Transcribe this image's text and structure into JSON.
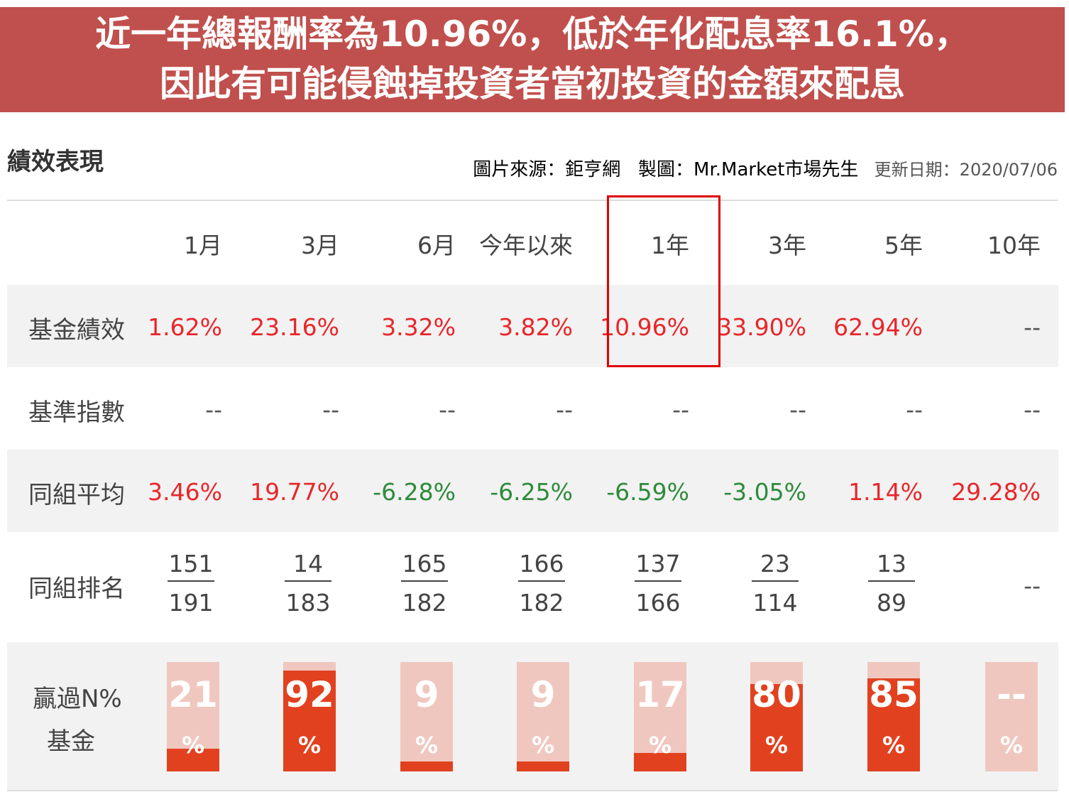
{
  "banner": {
    "line1": "近一年總報酬率為10.96%，低於年化配息率16.1%，",
    "line2": "因此有可能侵蝕掉投資者當初投資的金額來配息"
  },
  "section_title": "績效表現",
  "credits": {
    "source": "圖片來源：鉅亨網",
    "maker": "製圖：Mr.Market市場先生",
    "updated": "更新日期：2020/07/06"
  },
  "columns": [
    "1月",
    "3月",
    "6月",
    "今年以來",
    "1年",
    "3年",
    "5年",
    "10年"
  ],
  "rows": {
    "fund_perf": {
      "label": "基金績效",
      "values": [
        "1.62%",
        "23.16%",
        "3.32%",
        "3.82%",
        "10.96%",
        "33.90%",
        "62.94%",
        "--"
      ]
    },
    "benchmark": {
      "label": "基準指數",
      "values": [
        "--",
        "--",
        "--",
        "--",
        "--",
        "--",
        "--",
        "--"
      ]
    },
    "peer_avg": {
      "label": "同組平均",
      "values": [
        "3.46%",
        "19.77%",
        "-6.28%",
        "-6.25%",
        "-6.59%",
        "-3.05%",
        "1.14%",
        "29.28%"
      ]
    },
    "peer_rank": {
      "label": "同組排名",
      "ranks": [
        [
          "151",
          "191"
        ],
        [
          "14",
          "183"
        ],
        [
          "165",
          "182"
        ],
        [
          "166",
          "182"
        ],
        [
          "137",
          "166"
        ],
        [
          "23",
          "114"
        ],
        [
          "13",
          "89"
        ]
      ],
      "last": "--"
    },
    "beat": {
      "label_line1": "贏過N%",
      "label_line2": "基金",
      "values": [
        "21",
        "92",
        "9",
        "9",
        "17",
        "80",
        "85",
        "--"
      ],
      "percent_sign": "%",
      "fill_pct": [
        21,
        92,
        9,
        9,
        17,
        80,
        85,
        0
      ]
    }
  },
  "colors": {
    "banner": "#c0504d",
    "positive": "#e8262a",
    "negative": "#2e8b3a",
    "bar_fill": "#e2411f",
    "bar_bg": "#f0c7bf",
    "highlight": "#e00000"
  }
}
